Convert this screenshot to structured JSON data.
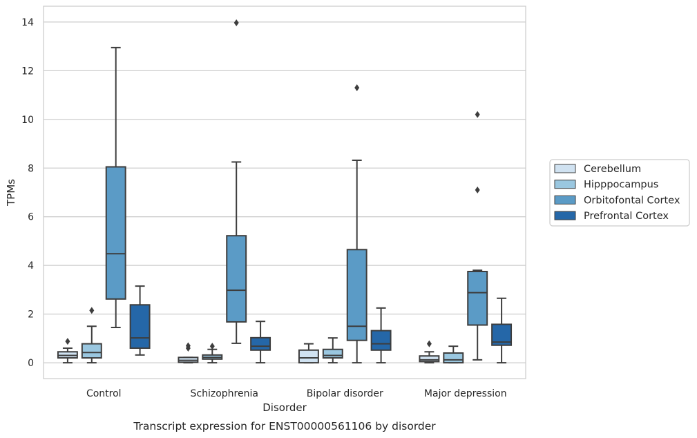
{
  "chart_data": {
    "type": "box",
    "title": "",
    "caption": "Transcript expression for ENST00000561106 by disorder",
    "xlabel": "Disorder",
    "ylabel": "TPMs",
    "ylim": [
      -0.65,
      14.65
    ],
    "yticks": [
      0,
      2,
      4,
      6,
      8,
      10,
      12,
      14
    ],
    "grid": "horizontal",
    "legend_position": "right",
    "categories": [
      "Control",
      "Schizophrenia",
      "Bipolar disorder",
      "Major depression"
    ],
    "series": [
      {
        "name": "Cerebellum",
        "color": "#d0e2f1",
        "boxes": [
          {
            "whislo": 0.0,
            "q1": 0.2,
            "med": 0.3,
            "q3": 0.45,
            "whishi": 0.6,
            "fliers": [
              0.88
            ]
          },
          {
            "whislo": 0.0,
            "q1": 0.02,
            "med": 0.1,
            "q3": 0.22,
            "whishi": 0.22,
            "fliers": [
              0.6,
              0.7
            ]
          },
          {
            "whislo": 0.0,
            "q1": 0.0,
            "med": 0.2,
            "q3": 0.52,
            "whishi": 0.78,
            "fliers": []
          },
          {
            "whislo": 0.0,
            "q1": 0.05,
            "med": 0.12,
            "q3": 0.28,
            "whishi": 0.45,
            "fliers": [
              0.78
            ]
          }
        ]
      },
      {
        "name": "Hipppocampus",
        "color": "#9ac7e0",
        "boxes": [
          {
            "whislo": 0.0,
            "q1": 0.2,
            "med": 0.42,
            "q3": 0.78,
            "whishi": 1.5,
            "fliers": [
              2.15
            ]
          },
          {
            "whislo": 0.0,
            "q1": 0.15,
            "med": 0.22,
            "q3": 0.32,
            "whishi": 0.55,
            "fliers": [
              0.68
            ]
          },
          {
            "whislo": 0.0,
            "q1": 0.2,
            "med": 0.3,
            "q3": 0.55,
            "whishi": 1.02,
            "fliers": []
          },
          {
            "whislo": 0.0,
            "q1": 0.0,
            "med": 0.12,
            "q3": 0.4,
            "whishi": 0.68,
            "fliers": []
          }
        ]
      },
      {
        "name": "Orbitofontal Cortex",
        "color": "#5b9bc6",
        "boxes": [
          {
            "whislo": 1.45,
            "q1": 2.62,
            "med": 4.48,
            "q3": 8.05,
            "whishi": 12.95,
            "fliers": []
          },
          {
            "whislo": 0.8,
            "q1": 1.68,
            "med": 2.98,
            "q3": 5.22,
            "whishi": 8.25,
            "fliers": [
              13.97
            ]
          },
          {
            "whislo": 0.0,
            "q1": 0.92,
            "med": 1.5,
            "q3": 4.65,
            "whishi": 8.32,
            "fliers": [
              11.3
            ]
          },
          {
            "whislo": 0.12,
            "q1": 1.55,
            "med": 2.88,
            "q3": 3.75,
            "whishi": 3.8,
            "fliers": [
              7.1,
              10.2
            ]
          }
        ]
      },
      {
        "name": "Prefrontal Cortex",
        "color": "#2567a8",
        "boxes": [
          {
            "whislo": 0.32,
            "q1": 0.6,
            "med": 1.02,
            "q3": 2.38,
            "whishi": 3.15,
            "fliers": []
          },
          {
            "whislo": 0.0,
            "q1": 0.52,
            "med": 0.68,
            "q3": 1.03,
            "whishi": 1.7,
            "fliers": []
          },
          {
            "whislo": 0.0,
            "q1": 0.52,
            "med": 0.78,
            "q3": 1.32,
            "whishi": 2.25,
            "fliers": []
          },
          {
            "whislo": 0.0,
            "q1": 0.72,
            "med": 0.85,
            "q3": 1.58,
            "whishi": 2.65,
            "fliers": []
          }
        ]
      }
    ]
  }
}
